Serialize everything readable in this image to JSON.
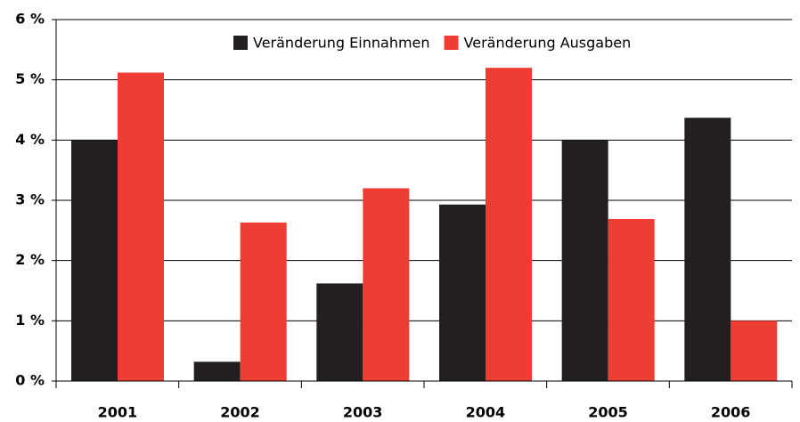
{
  "chart_data": {
    "type": "bar",
    "categories": [
      "2001",
      "2002",
      "2003",
      "2004",
      "2005",
      "2006"
    ],
    "series": [
      {
        "name": "Veränderung Einnahmen",
        "color": "#231f20",
        "values": [
          4.0,
          0.32,
          1.62,
          2.93,
          4.0,
          4.37
        ]
      },
      {
        "name": "Veränderung Ausgaben",
        "color": "#ee3e33",
        "values": [
          5.12,
          2.63,
          3.2,
          5.2,
          2.69,
          1.0
        ]
      }
    ],
    "ylim": [
      0,
      6
    ],
    "yticks": [
      {
        "value": 0,
        "label": "0 %"
      },
      {
        "value": 1,
        "label": "1 %"
      },
      {
        "value": 2,
        "label": "2 %"
      },
      {
        "value": 3,
        "label": "3 %"
      },
      {
        "value": 4,
        "label": "4 %"
      },
      {
        "value": 5,
        "label": "5 %"
      },
      {
        "value": 6,
        "label": "6 %"
      }
    ],
    "grid": true,
    "legend": "top"
  }
}
